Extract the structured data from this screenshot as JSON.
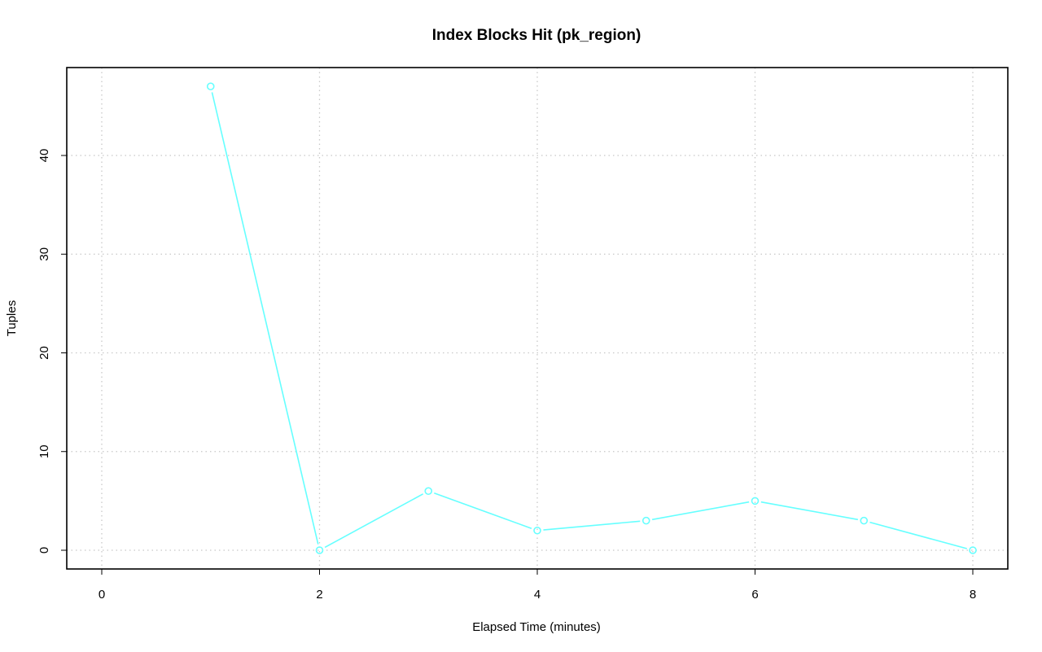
{
  "chart_data": {
    "type": "line",
    "title": "Index Blocks Hit (pk_region)",
    "xlabel": "Elapsed Time (minutes)",
    "ylabel": "Tuples",
    "xlim": [
      0,
      8
    ],
    "ylim": [
      0,
      47
    ],
    "x_ticks": [
      0,
      2,
      4,
      6,
      8
    ],
    "y_ticks": [
      0,
      10,
      20,
      30,
      40
    ],
    "grid": true,
    "series": [
      {
        "color": "#66ffff",
        "marker": "open-circle",
        "x": [
          1,
          2,
          3,
          4,
          5,
          6,
          7,
          8
        ],
        "y": [
          47,
          0,
          6,
          2,
          3,
          5,
          3,
          0
        ]
      }
    ]
  }
}
